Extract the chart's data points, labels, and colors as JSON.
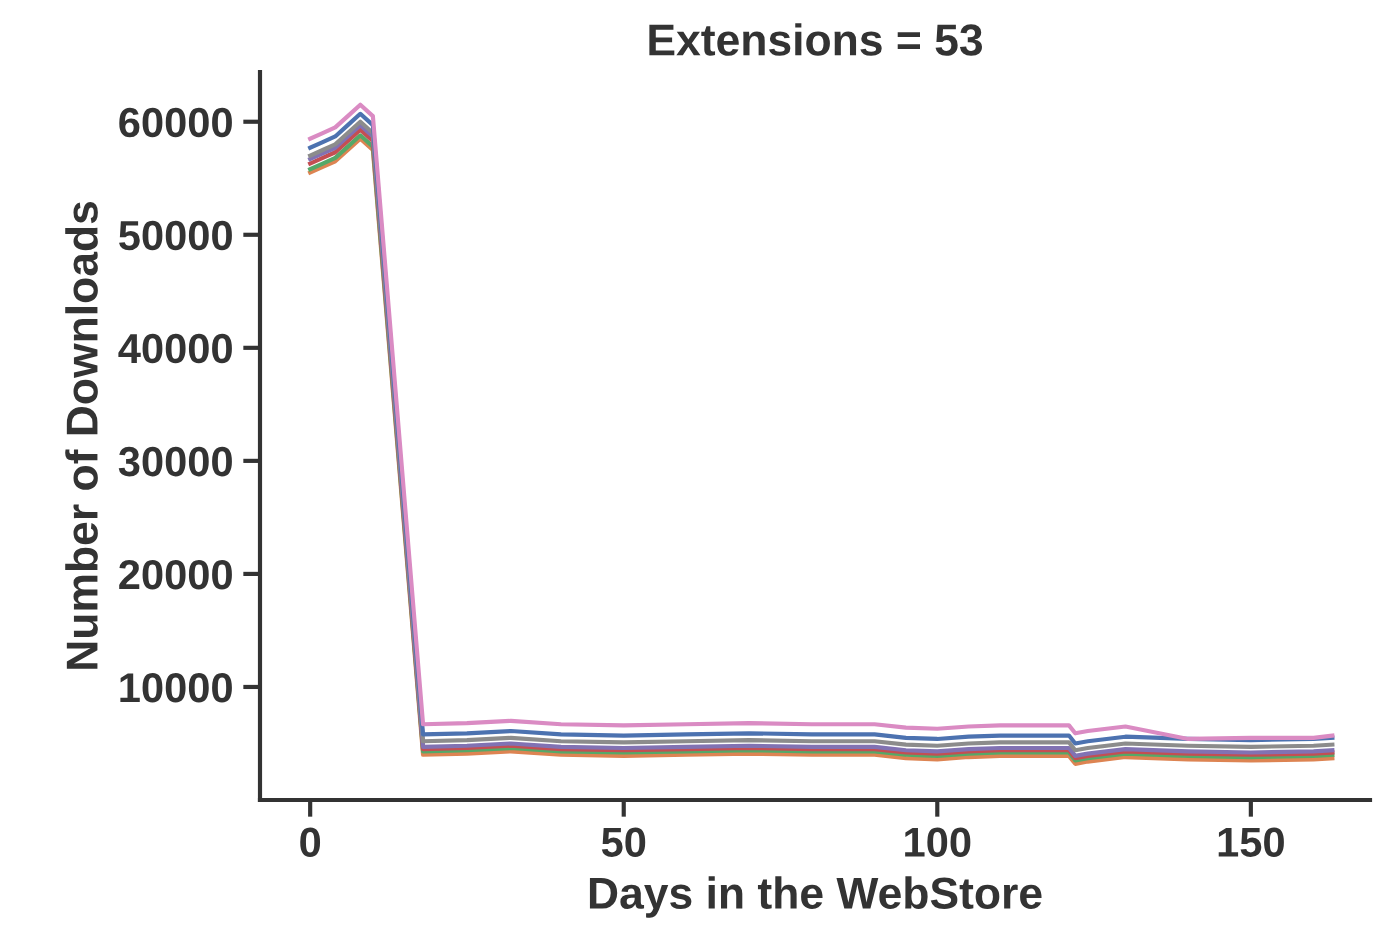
{
  "chart_data": {
    "type": "line",
    "title": "Extensions = 53",
    "xlabel": "Days in the WebStore",
    "ylabel": "Number of Downloads",
    "x": [
      0,
      2,
      4,
      6,
      8,
      10,
      18,
      25,
      32,
      40,
      50,
      60,
      70,
      80,
      90,
      95,
      100,
      105,
      110,
      121,
      122,
      124,
      130,
      140,
      150,
      160,
      163
    ],
    "xlim": [
      -8,
      169
    ],
    "ylim": [
      0,
      64400
    ],
    "xticks": [
      0,
      50,
      100,
      150
    ],
    "yticks": [
      10000,
      20000,
      30000,
      40000,
      50000,
      60000
    ],
    "grid": false,
    "marker": "none",
    "line_style": "solid",
    "series": [
      {
        "color": "#dd8452",
        "values": [
          55500,
          56000,
          56500,
          57500,
          58500,
          57500,
          4000,
          4100,
          4300,
          4000,
          3900,
          4000,
          4100,
          4000,
          4000,
          3700,
          3600,
          3800,
          3900,
          3900,
          3200,
          3400,
          3800,
          3600,
          3500,
          3600,
          3700
        ]
      },
      {
        "color": "#55a868",
        "values": [
          55800,
          56300,
          56800,
          57800,
          58800,
          57800,
          4300,
          4400,
          4600,
          4300,
          4200,
          4300,
          4400,
          4300,
          4300,
          4000,
          3900,
          4100,
          4200,
          4200,
          3500,
          3700,
          4100,
          3900,
          3800,
          3900,
          4000
        ]
      },
      {
        "color": "#c44e52",
        "values": [
          56300,
          56800,
          57300,
          58300,
          59300,
          58300,
          4500,
          4600,
          4800,
          4500,
          4400,
          4500,
          4600,
          4500,
          4500,
          4200,
          4100,
          4300,
          4400,
          4400,
          3700,
          3900,
          4300,
          4100,
          4000,
          4100,
          4200
        ]
      },
      {
        "color": "#8172b3",
        "values": [
          56700,
          57200,
          57700,
          58700,
          59700,
          58700,
          4700,
          4800,
          5000,
          4700,
          4600,
          4700,
          4800,
          4700,
          4700,
          4400,
          4300,
          4500,
          4600,
          4600,
          3900,
          4100,
          4500,
          4300,
          4200,
          4300,
          4400
        ]
      },
      {
        "color": "#8c8c8c",
        "values": [
          57000,
          57500,
          58000,
          59000,
          60000,
          59000,
          5200,
          5300,
          5500,
          5200,
          5100,
          5200,
          5300,
          5200,
          5200,
          4900,
          4800,
          5000,
          5100,
          5100,
          4400,
          4600,
          5000,
          4800,
          4700,
          4800,
          4900
        ]
      },
      {
        "color": "#4c72b0",
        "values": [
          57700,
          58200,
          58700,
          59700,
          60700,
          59700,
          5800,
          5900,
          6100,
          5800,
          5700,
          5800,
          5900,
          5800,
          5800,
          5500,
          5400,
          5600,
          5700,
          5700,
          5000,
          5200,
          5600,
          5400,
          5300,
          5400,
          5500
        ]
      },
      {
        "color": "#da8bc3",
        "values": [
          58500,
          59000,
          59500,
          60500,
          61500,
          60500,
          6700,
          6800,
          7000,
          6700,
          6600,
          6700,
          6800,
          6700,
          6700,
          6400,
          6300,
          6500,
          6600,
          6600,
          5900,
          6100,
          6500,
          5400,
          5500,
          5500,
          5700
        ]
      }
    ]
  }
}
